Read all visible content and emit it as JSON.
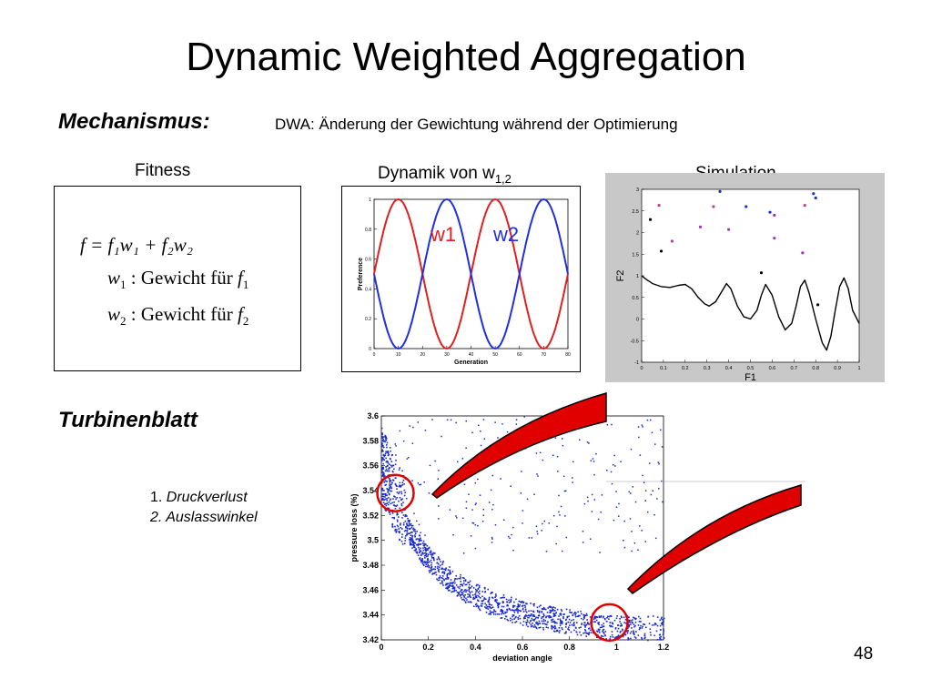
{
  "slide": {
    "title": "Dynamic Weighted Aggregation",
    "page_number": "48"
  },
  "mechanism": {
    "label": "Mechanismus:",
    "text": "DWA: Änderung der Gewichtung während der Optimierung"
  },
  "captions": {
    "fitness": "Fitness",
    "dynamik": "Dynamik von w",
    "dynamik_sub": "1,2",
    "simulation": "Simulation"
  },
  "formula": {
    "line1": "f = f₁w₁ + f₂w₂",
    "line2_label": "Gewicht für",
    "line3_label": "Gewicht für"
  },
  "turbine": {
    "label": "Turbinenblatt",
    "item1_num": "1.",
    "item1": "Druckverlust",
    "item2": "2. Auslasswinkel"
  },
  "chart_data": [
    {
      "type": "line",
      "title": "",
      "xlabel": "Generation",
      "ylabel": "Preference",
      "xlim": [
        0,
        80
      ],
      "ylim": [
        0,
        1
      ],
      "x_ticks": [
        "0",
        "10",
        "20",
        "30",
        "40",
        "50",
        "60",
        "70",
        "80"
      ],
      "y_ticks": [
        "0",
        "0.2",
        "0.4",
        "0.6",
        "0.8",
        "1"
      ],
      "series": [
        {
          "name": "w1",
          "color": "#e02020",
          "formula": "0.5+0.5*sin(2*pi*x/40)"
        },
        {
          "name": "w2",
          "color": "#2030e0",
          "formula": "0.5-0.5*sin(2*pi*x/40)"
        }
      ]
    },
    {
      "type": "scatter",
      "title": "",
      "xlabel": "F1",
      "ylabel": "F2",
      "xlim": [
        0,
        1
      ],
      "ylim": [
        -1,
        3
      ],
      "x_ticks": [
        "0",
        "0.1",
        "0.2",
        "0.3",
        "0.4",
        "0.5",
        "0.6",
        "0.7",
        "0.8",
        "0.9",
        "1"
      ],
      "y_ticks": [
        "-1",
        "-0.5",
        "0",
        "0.5",
        "1",
        "1.5",
        "2",
        "2.5",
        "3"
      ],
      "front": [
        [
          0,
          1
        ],
        [
          0.02,
          0.92
        ],
        [
          0.05,
          0.82
        ],
        [
          0.09,
          0.75
        ],
        [
          0.13,
          0.73
        ],
        [
          0.17,
          0.78
        ],
        [
          0.2,
          0.8
        ],
        [
          0.23,
          0.7
        ],
        [
          0.26,
          0.5
        ],
        [
          0.29,
          0.35
        ],
        [
          0.31,
          0.3
        ],
        [
          0.34,
          0.4
        ],
        [
          0.37,
          0.65
        ],
        [
          0.39,
          0.82
        ],
        [
          0.41,
          0.7
        ],
        [
          0.44,
          0.3
        ],
        [
          0.47,
          0.05
        ],
        [
          0.5,
          0.0
        ],
        [
          0.53,
          0.2
        ],
        [
          0.55,
          0.55
        ],
        [
          0.57,
          0.8
        ],
        [
          0.6,
          0.55
        ],
        [
          0.63,
          0.05
        ],
        [
          0.66,
          -0.25
        ],
        [
          0.69,
          -0.1
        ],
        [
          0.71,
          0.3
        ],
        [
          0.73,
          0.75
        ],
        [
          0.75,
          0.9
        ],
        [
          0.77,
          0.6
        ],
        [
          0.8,
          0.0
        ],
        [
          0.83,
          -0.55
        ],
        [
          0.85,
          -0.72
        ],
        [
          0.87,
          -0.4
        ],
        [
          0.89,
          0.2
        ],
        [
          0.91,
          0.75
        ],
        [
          0.93,
          0.95
        ],
        [
          0.95,
          0.7
        ],
        [
          0.97,
          0.2
        ],
        [
          1,
          -0.1
        ]
      ],
      "points": [
        {
          "x": 0.04,
          "y": 2.3,
          "c": "#000"
        },
        {
          "x": 0.08,
          "y": 2.63,
          "c": "#c04080"
        },
        {
          "x": 0.09,
          "y": 1.57,
          "c": "#000"
        },
        {
          "x": 0.14,
          "y": 1.8,
          "c": "#c04080"
        },
        {
          "x": 0.27,
          "y": 2.13,
          "c": "#a030c0"
        },
        {
          "x": 0.33,
          "y": 2.6,
          "c": "#c04080"
        },
        {
          "x": 0.36,
          "y": 2.95,
          "c": "#2030c0"
        },
        {
          "x": 0.4,
          "y": 2.07,
          "c": "#a030c0"
        },
        {
          "x": 0.48,
          "y": 2.6,
          "c": "#2030c0"
        },
        {
          "x": 0.55,
          "y": 1.07,
          "c": "#000"
        },
        {
          "x": 0.59,
          "y": 2.47,
          "c": "#2030c0"
        },
        {
          "x": 0.61,
          "y": 2.4,
          "c": "#a030c0"
        },
        {
          "x": 0.61,
          "y": 1.87,
          "c": "#a030c0"
        },
        {
          "x": 0.74,
          "y": 1.53,
          "c": "#a030c0"
        },
        {
          "x": 0.75,
          "y": 2.63,
          "c": "#c04080"
        },
        {
          "x": 0.79,
          "y": 2.9,
          "c": "#2030c0"
        },
        {
          "x": 0.8,
          "y": 2.8,
          "c": "#2030c0"
        },
        {
          "x": 0.81,
          "y": 0.33,
          "c": "#000"
        }
      ]
    },
    {
      "type": "scatter",
      "title": "",
      "xlabel": "deviation angle",
      "ylabel": "pressure loss (%)",
      "xlim": [
        0,
        1.2
      ],
      "ylim": [
        3.42,
        3.6
      ],
      "x_ticks": [
        "0",
        "0.2",
        "0.4",
        "0.6",
        "0.8",
        "1",
        "1.2"
      ],
      "y_ticks": [
        "3.42",
        "3.44",
        "3.46",
        "3.48",
        "3.5",
        "3.52",
        "3.54",
        "3.56",
        "3.58",
        "3.6"
      ],
      "point_color": "#1a2ad0",
      "highlight_circles": [
        {
          "x": 0.06,
          "y": 3.538,
          "color": "#e00000"
        },
        {
          "x": 0.97,
          "y": 3.434,
          "color": "#e00000"
        }
      ]
    }
  ]
}
